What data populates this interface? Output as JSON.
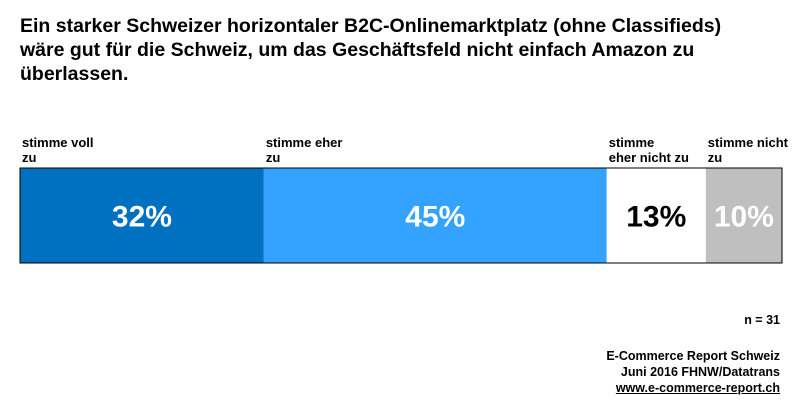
{
  "title": "Ein starker Schweizer horizontaler B2C-Onlinemarktplatz (ohne Classifieds)\nwäre gut für die Schweiz, um das Geschäftsfeld nicht einfach Amazon zu\nüberlassen.",
  "chart_data": {
    "type": "bar",
    "orientation": "horizontal-stacked",
    "categories": [
      "stimme voll zu",
      "stimme eher zu",
      "stimme eher nicht zu",
      "stimme nicht zu"
    ],
    "values": [
      32,
      45,
      13,
      10
    ],
    "value_labels": [
      "32%",
      "45%",
      "13%",
      "10%"
    ],
    "colors": [
      "#0070c0",
      "#33a3ff",
      "#ffffff",
      "#bfbfbf"
    ],
    "value_text_colors": [
      "#ffffff",
      "#ffffff",
      "#000000",
      "#ffffff"
    ],
    "unit": "%",
    "total": 100
  },
  "sample_size": "n = 31",
  "source": {
    "line1": "E-Commerce Report Schweiz",
    "line2": "Juni 2016 FHNW/Datatrans",
    "link": "www.e-commerce-report.ch"
  }
}
